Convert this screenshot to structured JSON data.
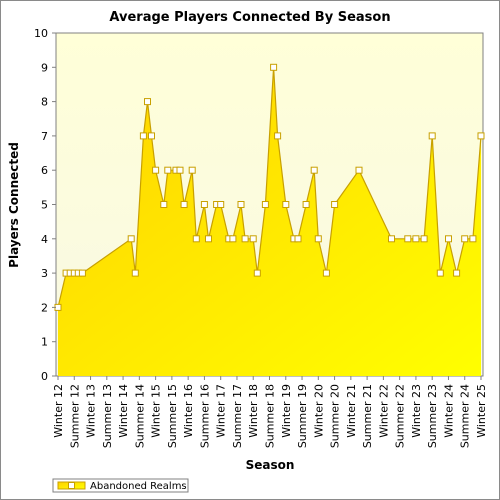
{
  "chart_data": {
    "type": "area",
    "title": "Average Players Connected By Season",
    "xlabel": "Season",
    "ylabel": "Players Connected",
    "ylim": [
      0,
      10
    ],
    "yticks": [
      "0",
      "1",
      "2",
      "3",
      "4",
      "5",
      "6",
      "7",
      "8",
      "9",
      "10"
    ],
    "categories": [
      "Winter 12",
      "Summer 12",
      "Winter 13",
      "Summer 13",
      "Winter 14",
      "Summer 14",
      "Winter 15",
      "Summer 15",
      "Winter 16",
      "Summer 16",
      "Winter 17",
      "Summer 17",
      "Winter 18",
      "Summer 18",
      "Winter 19",
      "Summer 19",
      "Winter 20",
      "Summer 20",
      "Winter 21",
      "Summer 21",
      "Winter 22",
      "Summer 22",
      "Winter 23",
      "Summer 23",
      "Winter 24",
      "Summer 24",
      "Winter 25"
    ],
    "series": [
      {
        "name": "Abandoned Realms",
        "x": [
          0.0,
          0.5,
          0.75,
          1.0,
          1.25,
          1.5,
          4.5,
          4.75,
          5.25,
          5.5,
          5.75,
          6.0,
          6.5,
          6.75,
          7.25,
          7.5,
          7.75,
          8.25,
          8.5,
          9.0,
          9.25,
          9.75,
          10.0,
          10.5,
          10.75,
          11.25,
          11.5,
          12.0,
          12.25,
          12.75,
          13.25,
          13.5,
          14.0,
          14.5,
          14.75,
          15.25,
          15.75,
          16.0,
          16.5,
          17.0,
          18.5,
          20.5,
          21.5,
          22.0,
          22.5,
          23.0,
          23.5,
          24.0,
          24.5,
          25.0,
          25.5,
          26.0
        ],
        "values": [
          2,
          3,
          3,
          3,
          3,
          3,
          4,
          3,
          7,
          8,
          7,
          6,
          5,
          6,
          6,
          6,
          5,
          6,
          4,
          5,
          4,
          5,
          5,
          4,
          4,
          5,
          4,
          4,
          3,
          5,
          9,
          7,
          5,
          4,
          4,
          5,
          6,
          4,
          3,
          5,
          6,
          4,
          4,
          4,
          4,
          7,
          3,
          4,
          3,
          4,
          4,
          7
        ]
      }
    ],
    "grid": false,
    "legend_position": "bottom-left",
    "colors": {
      "fill_top": "#ffd700",
      "fill_bottom": "#ffff00",
      "line": "#c8a000",
      "marker_fill": "#ffffff",
      "plot_bg_top": "#ffffd8",
      "plot_bg_bottom": "#fafae6"
    }
  }
}
